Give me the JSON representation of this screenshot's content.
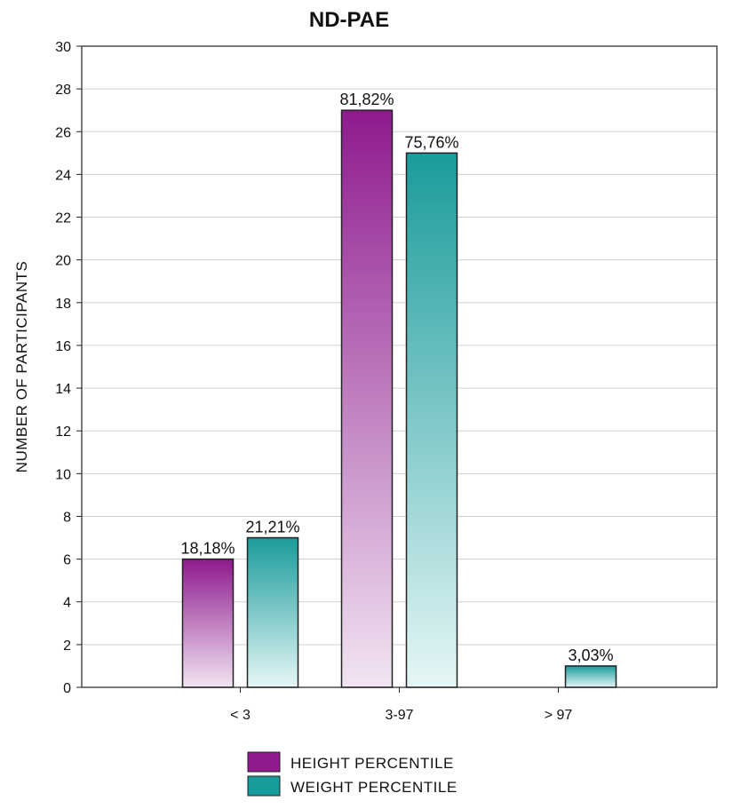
{
  "chart_data": {
    "type": "bar",
    "title": "ND-PAE",
    "xlabel": "",
    "ylabel": "NUMBER OF PARTICIPANTS",
    "categories": [
      "< 3",
      "3-97",
      "> 97"
    ],
    "ylim": [
      0,
      30
    ],
    "yticks": [
      0,
      2,
      4,
      6,
      8,
      10,
      12,
      14,
      16,
      18,
      20,
      22,
      24,
      26,
      28,
      30
    ],
    "grid": true,
    "legend_position": "bottom",
    "series": [
      {
        "name": "HEIGHT PERCENTILE",
        "values": [
          6,
          27,
          0
        ],
        "labels": [
          "18,18%",
          "81,82%",
          ""
        ],
        "color": "#8e1a8e",
        "color_light": "#f1e4f2"
      },
      {
        "name": "WEIGHT PERCENTILE",
        "values": [
          7,
          25,
          1
        ],
        "labels": [
          "21,21%",
          "75,76%",
          "3,03%"
        ],
        "color": "#1a9b9b",
        "color_light": "#e6f6f6"
      }
    ]
  }
}
